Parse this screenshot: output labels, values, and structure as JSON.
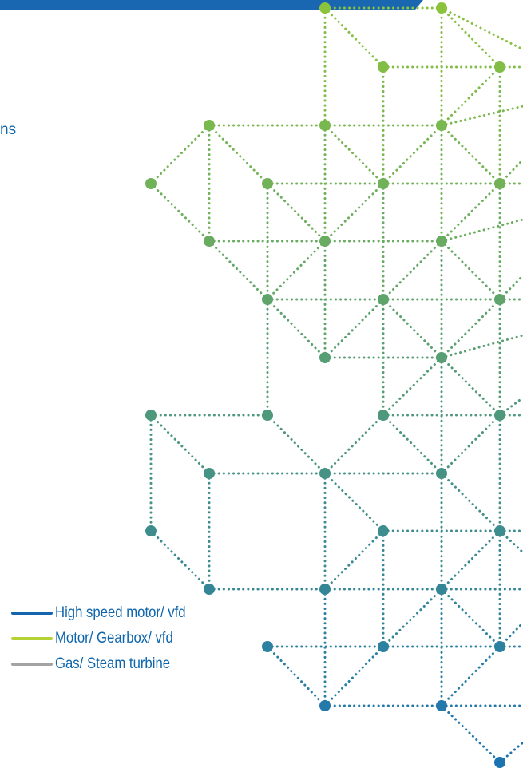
{
  "header_fragment": "ns",
  "colors": {
    "header_band": "#1a67b1",
    "edge_top": "#8cc43c",
    "edge_bottom": "#1a73b2",
    "text": "#0d66ad"
  },
  "legend": [
    {
      "label": "High speed motor/ vfd",
      "color": "#1565ad"
    },
    {
      "label": "Motor/ Gearbox/ vfd",
      "color": "#b5d334"
    },
    {
      "label": "Gas/ Steam turbine",
      "color": "#a3a3a3"
    }
  ]
}
